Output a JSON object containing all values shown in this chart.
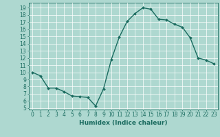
{
  "x": [
    0,
    1,
    2,
    3,
    4,
    5,
    6,
    7,
    8,
    9,
    10,
    11,
    12,
    13,
    14,
    15,
    16,
    17,
    18,
    19,
    20,
    21,
    22,
    23
  ],
  "y": [
    10,
    9.5,
    7.8,
    7.8,
    7.3,
    6.7,
    6.6,
    6.5,
    5.3,
    7.7,
    11.8,
    14.9,
    17.1,
    18.2,
    19.0,
    18.8,
    17.4,
    17.3,
    16.7,
    16.3,
    14.8,
    12.0,
    11.7,
    11.2
  ],
  "line_color": "#1a6b5f",
  "marker_color": "#1a6b5f",
  "bg_color": "#aed8d0",
  "grid_color": "#ffffff",
  "xlabel": "Humidex (Indice chaleur)",
  "xlim": [
    -0.5,
    23.5
  ],
  "ylim": [
    4.8,
    19.7
  ],
  "yticks": [
    5,
    6,
    7,
    8,
    9,
    10,
    11,
    12,
    13,
    14,
    15,
    16,
    17,
    18,
    19
  ],
  "xticks": [
    0,
    1,
    2,
    3,
    4,
    5,
    6,
    7,
    8,
    9,
    10,
    11,
    12,
    13,
    14,
    15,
    16,
    17,
    18,
    19,
    20,
    21,
    22,
    23
  ],
  "tick_fontsize": 5.5,
  "label_fontsize": 6.5,
  "marker_size": 2.0,
  "linewidth": 1.0
}
